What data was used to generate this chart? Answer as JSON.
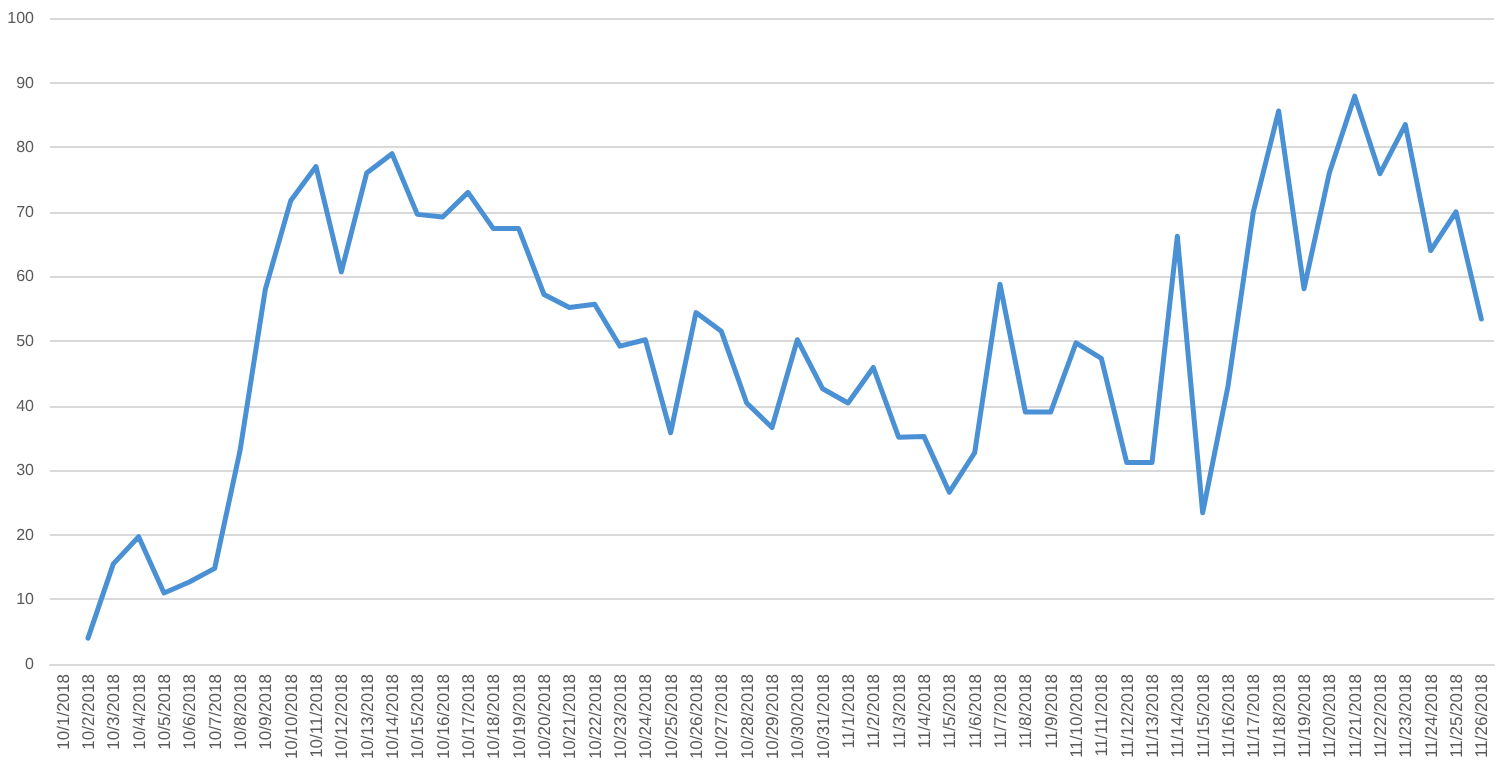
{
  "chart_data": {
    "type": "line",
    "categories": [
      "10/1/2018",
      "10/2/2018",
      "10/3/2018",
      "10/4/2018",
      "10/5/2018",
      "10/6/2018",
      "10/7/2018",
      "10/8/2018",
      "10/9/2018",
      "10/10/2018",
      "10/11/2018",
      "10/12/2018",
      "10/13/2018",
      "10/14/2018",
      "10/15/2018",
      "10/16/2018",
      "10/17/2018",
      "10/18/2018",
      "10/19/2018",
      "10/20/2018",
      "10/21/2018",
      "10/22/2018",
      "10/23/2018",
      "10/24/2018",
      "10/25/2018",
      "10/26/2018",
      "10/27/2018",
      "10/28/2018",
      "10/29/2018",
      "10/30/2018",
      "10/31/2018",
      "11/1/2018",
      "11/2/2018",
      "11/3/2018",
      "11/4/2018",
      "11/5/2018",
      "11/6/2018",
      "11/7/2018",
      "11/8/2018",
      "11/9/2018",
      "11/10/2018",
      "11/11/2018",
      "11/12/2018",
      "11/13/2018",
      "11/14/2018",
      "11/15/2018",
      "11/16/2018",
      "11/17/2018",
      "11/18/2018",
      "11/19/2018",
      "11/20/2018",
      "11/21/2018",
      "11/22/2018",
      "11/23/2018",
      "11/24/2018",
      "11/25/2018",
      "11/26/2018"
    ],
    "series": [
      {
        "color": "#4a90d4",
        "values": [
          null,
          4,
          15.5,
          19.7,
          11,
          12.7,
          14.8,
          33,
          58,
          71.7,
          77,
          60.7,
          76,
          79,
          69.6,
          69.2,
          73,
          67.4,
          67.4,
          57.2,
          55.2,
          55.7,
          49.2,
          50.2,
          35.8,
          54.4,
          51.5,
          40.4,
          36.6,
          50.2,
          42.6,
          40.4,
          45.9,
          35.1,
          35.2,
          26.6,
          32.7,
          58.8,
          39,
          39,
          49.7,
          47.3,
          31.2,
          31.2,
          66.2,
          23.4,
          43,
          70,
          85.6,
          58.1,
          76,
          87.9,
          75.9,
          83.5,
          64,
          70,
          53.4
        ]
      }
    ],
    "ylim": [
      0,
      100
    ],
    "yticks": [
      0,
      10,
      20,
      30,
      40,
      50,
      60,
      70,
      80,
      90,
      100
    ],
    "grid": "y",
    "marker": "none",
    "line_style": "solid"
  }
}
